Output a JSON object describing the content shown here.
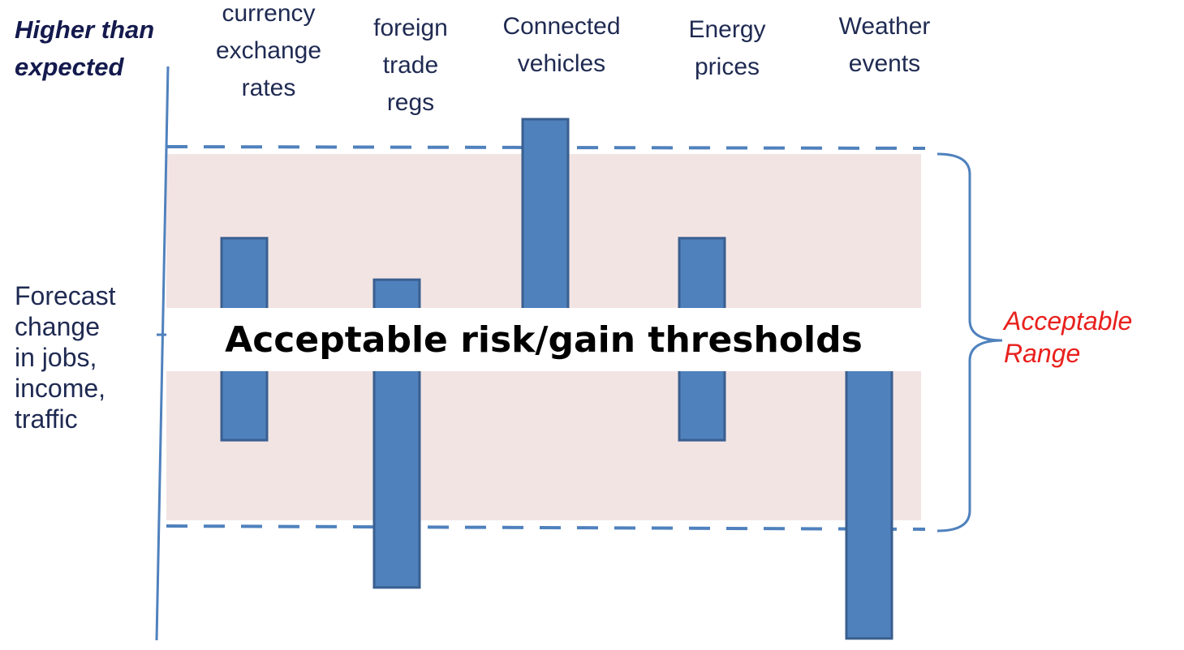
{
  "axis": {
    "top_label": "Higher than\nexpected",
    "label": "Forecast\nchange\nin jobs,\nincome,\ntraffic"
  },
  "banner": {
    "text": "Acceptable risk/gain thresholds"
  },
  "range": {
    "label": "Acceptable\nRange"
  },
  "bars": [
    {
      "label": "currency\nexchange\nrates",
      "top": 0.52,
      "bottom": -0.55
    },
    {
      "label": "foreign\ntrade\nregs",
      "top": 0.3,
      "bottom": -1.33
    },
    {
      "label": "Connected\nvehicles",
      "top": 1.15,
      "bottom": 0.0
    },
    {
      "label": "Energy\nprices",
      "top": 0.52,
      "bottom": -0.55
    },
    {
      "label": "Weather\nevents",
      "top": 0.0,
      "bottom": -1.6
    }
  ],
  "colors": {
    "bar_fill": "#4f81bd",
    "bar_border": "#3a5f8f",
    "band": "#f3e4e4",
    "threshold_line": "#4f81bd",
    "range_label": "#e8201c"
  }
}
